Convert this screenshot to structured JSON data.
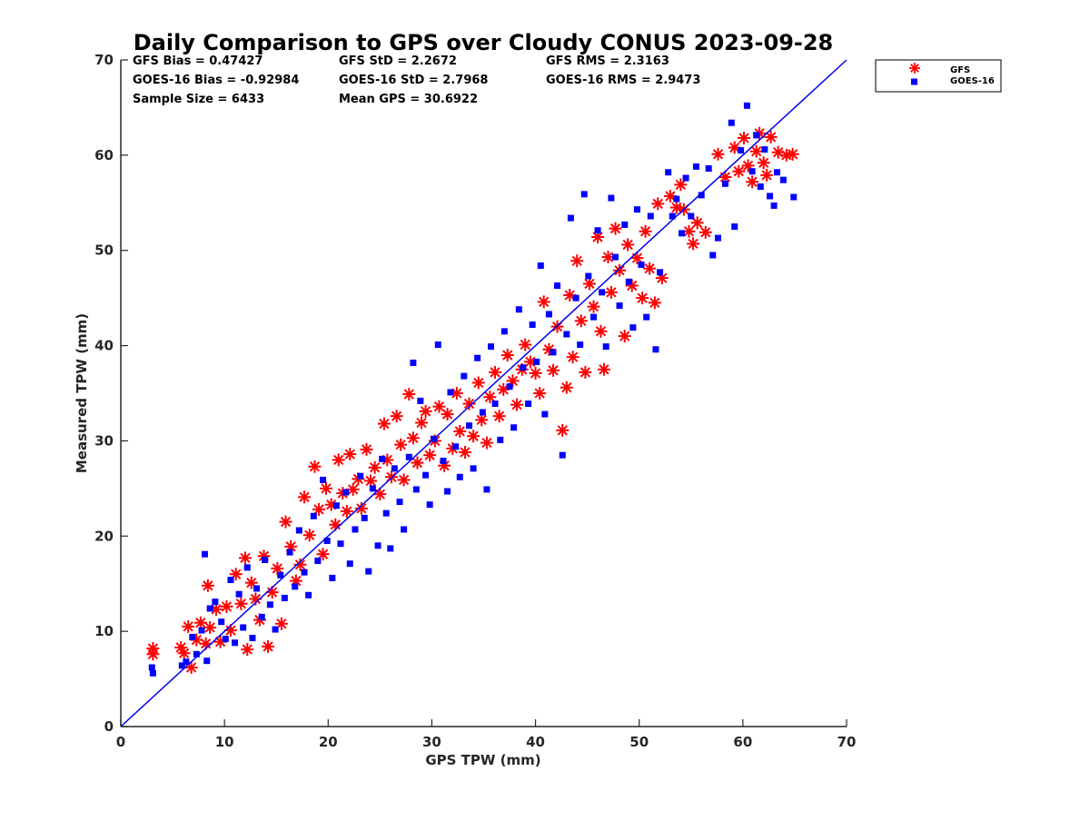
{
  "chart_data": {
    "type": "scatter",
    "title": "Daily Comparison to GPS over Cloudy CONUS 2023-09-28",
    "xlabel": "GPS TPW (mm)",
    "ylabel": "Measured TPW (mm)",
    "xlim": [
      0,
      70
    ],
    "ylim": [
      0,
      70
    ],
    "xticks": [
      0,
      10,
      20,
      30,
      40,
      50,
      60,
      70
    ],
    "yticks": [
      0,
      10,
      20,
      30,
      40,
      50,
      60,
      70
    ],
    "grid": false,
    "legend_position": "outside top-right",
    "reference_line": {
      "x": [
        0,
        70
      ],
      "y": [
        0,
        70
      ],
      "color": "#0000ee"
    },
    "stats": [
      [
        "GFS Bias = 0.47427",
        "GFS StD = 2.2672",
        "GFS RMS = 2.3163"
      ],
      [
        "GOES-16 Bias = -0.92984",
        "GOES-16 StD = 2.7968",
        "GOES-16 RMS = 2.9473"
      ],
      [
        "Sample Size = 6433",
        "Mean GPS = 30.6922",
        ""
      ]
    ],
    "series": [
      {
        "name": "GFS",
        "marker": "asterisk",
        "color": "#ff0000",
        "points": [
          [
            3.1,
            8.2
          ],
          [
            3.1,
            7.6
          ],
          [
            5.8,
            8.3
          ],
          [
            6.1,
            7.7
          ],
          [
            6.5,
            10.5
          ],
          [
            6.8,
            6.2
          ],
          [
            7.3,
            9.1
          ],
          [
            7.7,
            10.9
          ],
          [
            8.2,
            8.7
          ],
          [
            8.4,
            14.8
          ],
          [
            8.6,
            10.4
          ],
          [
            9.2,
            12.3
          ],
          [
            9.6,
            8.9
          ],
          [
            10.2,
            12.6
          ],
          [
            10.6,
            10.1
          ],
          [
            11.1,
            16.0
          ],
          [
            11.6,
            12.9
          ],
          [
            12.0,
            17.7
          ],
          [
            12.2,
            8.1
          ],
          [
            12.6,
            15.1
          ],
          [
            13.0,
            13.4
          ],
          [
            13.4,
            11.2
          ],
          [
            13.8,
            17.9
          ],
          [
            14.2,
            8.4
          ],
          [
            14.6,
            14.1
          ],
          [
            15.1,
            16.6
          ],
          [
            15.5,
            10.8
          ],
          [
            15.9,
            21.5
          ],
          [
            16.4,
            18.9
          ],
          [
            16.9,
            15.3
          ],
          [
            17.3,
            17.0
          ],
          [
            17.7,
            24.1
          ],
          [
            18.2,
            20.1
          ],
          [
            18.7,
            27.3
          ],
          [
            19.1,
            22.8
          ],
          [
            19.5,
            18.1
          ],
          [
            19.8,
            25.0
          ],
          [
            20.3,
            23.3
          ],
          [
            20.7,
            21.2
          ],
          [
            21.0,
            28.0
          ],
          [
            21.4,
            24.5
          ],
          [
            21.8,
            22.6
          ],
          [
            22.1,
            28.6
          ],
          [
            22.4,
            24.9
          ],
          [
            22.9,
            26.0
          ],
          [
            23.2,
            22.9
          ],
          [
            23.7,
            29.1
          ],
          [
            24.1,
            25.8
          ],
          [
            24.5,
            27.2
          ],
          [
            25.0,
            24.4
          ],
          [
            25.4,
            31.8
          ],
          [
            25.7,
            28.0
          ],
          [
            26.1,
            26.2
          ],
          [
            26.6,
            32.6
          ],
          [
            27.0,
            29.6
          ],
          [
            27.3,
            25.9
          ],
          [
            27.8,
            34.9
          ],
          [
            28.2,
            30.3
          ],
          [
            28.6,
            27.7
          ],
          [
            29.0,
            31.9
          ],
          [
            29.4,
            33.1
          ],
          [
            29.8,
            28.5
          ],
          [
            30.3,
            30.0
          ],
          [
            30.7,
            33.6
          ],
          [
            31.2,
            27.4
          ],
          [
            31.5,
            32.8
          ],
          [
            32.0,
            29.2
          ],
          [
            32.4,
            35.0
          ],
          [
            32.7,
            31.0
          ],
          [
            33.2,
            28.8
          ],
          [
            33.6,
            33.9
          ],
          [
            34.0,
            30.5
          ],
          [
            34.5,
            36.1
          ],
          [
            34.8,
            32.2
          ],
          [
            35.3,
            29.8
          ],
          [
            35.6,
            34.6
          ],
          [
            36.1,
            37.2
          ],
          [
            36.5,
            32.6
          ],
          [
            36.9,
            35.4
          ],
          [
            37.3,
            39.0
          ],
          [
            37.8,
            36.3
          ],
          [
            38.2,
            33.8
          ],
          [
            38.7,
            37.5
          ],
          [
            39.0,
            40.1
          ],
          [
            39.5,
            38.3
          ],
          [
            40.0,
            37.1
          ],
          [
            40.4,
            35.0
          ],
          [
            40.8,
            44.6
          ],
          [
            41.3,
            39.6
          ],
          [
            41.7,
            37.4
          ],
          [
            42.1,
            42.0
          ],
          [
            42.6,
            31.1
          ],
          [
            43.0,
            35.6
          ],
          [
            43.3,
            45.3
          ],
          [
            43.6,
            38.8
          ],
          [
            44.0,
            48.9
          ],
          [
            44.4,
            42.6
          ],
          [
            44.8,
            37.2
          ],
          [
            45.2,
            46.5
          ],
          [
            45.6,
            44.1
          ],
          [
            46.0,
            51.4
          ],
          [
            46.3,
            41.5
          ],
          [
            46.6,
            37.5
          ],
          [
            47.0,
            49.3
          ],
          [
            47.3,
            45.6
          ],
          [
            47.7,
            52.3
          ],
          [
            48.1,
            47.9
          ],
          [
            48.6,
            41.0
          ],
          [
            48.9,
            50.6
          ],
          [
            49.3,
            46.3
          ],
          [
            49.8,
            49.2
          ],
          [
            50.3,
            45.0
          ],
          [
            50.6,
            52.0
          ],
          [
            51.0,
            48.1
          ],
          [
            51.5,
            44.5
          ],
          [
            51.8,
            54.9
          ],
          [
            52.2,
            47.1
          ],
          [
            53.0,
            55.7
          ],
          [
            53.6,
            54.5
          ],
          [
            54.0,
            56.9
          ],
          [
            54.3,
            54.3
          ],
          [
            54.8,
            52.0
          ],
          [
            55.2,
            50.7
          ],
          [
            55.6,
            52.9
          ],
          [
            56.4,
            51.9
          ],
          [
            57.6,
            60.1
          ],
          [
            58.3,
            57.7
          ],
          [
            59.2,
            60.8
          ],
          [
            59.6,
            58.3
          ],
          [
            60.1,
            61.8
          ],
          [
            60.5,
            58.9
          ],
          [
            60.9,
            57.2
          ],
          [
            61.3,
            60.4
          ],
          [
            61.6,
            62.3
          ],
          [
            62.0,
            59.2
          ],
          [
            62.3,
            57.9
          ],
          [
            62.7,
            61.9
          ],
          [
            63.4,
            60.3
          ],
          [
            64.2,
            60.0
          ],
          [
            64.8,
            60.1
          ]
        ]
      },
      {
        "name": "GOES-16",
        "marker": "square",
        "color": "#0000ff",
        "points": [
          [
            3.0,
            6.2
          ],
          [
            3.1,
            5.6
          ],
          [
            5.9,
            6.4
          ],
          [
            6.3,
            6.8
          ],
          [
            6.9,
            9.4
          ],
          [
            7.3,
            7.6
          ],
          [
            7.8,
            10.1
          ],
          [
            8.1,
            18.1
          ],
          [
            8.3,
            6.9
          ],
          [
            8.6,
            12.4
          ],
          [
            9.1,
            13.1
          ],
          [
            9.7,
            11.0
          ],
          [
            10.1,
            9.2
          ],
          [
            10.6,
            15.4
          ],
          [
            11.0,
            8.8
          ],
          [
            11.4,
            13.9
          ],
          [
            11.8,
            10.4
          ],
          [
            12.2,
            16.7
          ],
          [
            12.7,
            9.3
          ],
          [
            13.1,
            14.5
          ],
          [
            13.6,
            11.5
          ],
          [
            13.9,
            17.5
          ],
          [
            14.4,
            12.8
          ],
          [
            14.9,
            10.2
          ],
          [
            15.4,
            15.9
          ],
          [
            15.8,
            13.5
          ],
          [
            16.3,
            18.3
          ],
          [
            16.8,
            14.7
          ],
          [
            17.2,
            20.6
          ],
          [
            17.7,
            16.2
          ],
          [
            18.1,
            13.8
          ],
          [
            18.6,
            22.1
          ],
          [
            19.0,
            17.4
          ],
          [
            19.5,
            25.9
          ],
          [
            19.9,
            19.5
          ],
          [
            20.4,
            15.6
          ],
          [
            20.8,
            23.2
          ],
          [
            21.2,
            19.2
          ],
          [
            21.7,
            24.6
          ],
          [
            22.1,
            17.1
          ],
          [
            22.6,
            20.7
          ],
          [
            23.1,
            26.3
          ],
          [
            23.5,
            21.9
          ],
          [
            23.9,
            16.3
          ],
          [
            24.3,
            25.0
          ],
          [
            24.8,
            19.0
          ],
          [
            25.2,
            28.1
          ],
          [
            25.6,
            22.4
          ],
          [
            26.0,
            18.7
          ],
          [
            26.4,
            27.1
          ],
          [
            26.9,
            23.6
          ],
          [
            27.3,
            20.7
          ],
          [
            27.8,
            28.3
          ],
          [
            28.2,
            38.2
          ],
          [
            28.5,
            24.9
          ],
          [
            28.9,
            34.2
          ],
          [
            29.4,
            26.4
          ],
          [
            29.8,
            23.3
          ],
          [
            30.2,
            30.2
          ],
          [
            30.6,
            40.1
          ],
          [
            31.1,
            27.9
          ],
          [
            31.5,
            24.7
          ],
          [
            31.8,
            35.1
          ],
          [
            32.3,
            29.4
          ],
          [
            32.7,
            26.2
          ],
          [
            33.1,
            36.8
          ],
          [
            33.6,
            31.6
          ],
          [
            34.0,
            27.1
          ],
          [
            34.4,
            38.7
          ],
          [
            34.9,
            33.0
          ],
          [
            35.3,
            24.9
          ],
          [
            35.7,
            39.9
          ],
          [
            36.1,
            33.9
          ],
          [
            36.6,
            30.1
          ],
          [
            37.0,
            41.5
          ],
          [
            37.5,
            35.7
          ],
          [
            37.9,
            31.4
          ],
          [
            38.4,
            43.8
          ],
          [
            38.8,
            37.7
          ],
          [
            39.3,
            33.9
          ],
          [
            39.7,
            42.2
          ],
          [
            40.1,
            38.3
          ],
          [
            40.5,
            48.4
          ],
          [
            40.9,
            32.8
          ],
          [
            41.3,
            43.3
          ],
          [
            41.7,
            39.3
          ],
          [
            42.1,
            46.3
          ],
          [
            42.6,
            28.5
          ],
          [
            43.0,
            41.2
          ],
          [
            43.4,
            53.4
          ],
          [
            43.9,
            45.0
          ],
          [
            44.3,
            40.1
          ],
          [
            44.7,
            55.9
          ],
          [
            45.1,
            47.3
          ],
          [
            45.6,
            43.0
          ],
          [
            46.0,
            52.1
          ],
          [
            46.4,
            45.6
          ],
          [
            46.8,
            39.9
          ],
          [
            47.3,
            55.5
          ],
          [
            47.7,
            49.3
          ],
          [
            48.1,
            44.2
          ],
          [
            48.6,
            52.7
          ],
          [
            49.0,
            46.7
          ],
          [
            49.4,
            41.9
          ],
          [
            49.8,
            54.3
          ],
          [
            50.2,
            48.5
          ],
          [
            50.7,
            43.0
          ],
          [
            51.1,
            53.6
          ],
          [
            51.6,
            39.6
          ],
          [
            52.0,
            47.7
          ],
          [
            52.8,
            58.2
          ],
          [
            53.2,
            53.6
          ],
          [
            53.6,
            55.4
          ],
          [
            54.1,
            51.8
          ],
          [
            54.5,
            57.6
          ],
          [
            55.0,
            53.6
          ],
          [
            55.5,
            58.8
          ],
          [
            56.0,
            55.8
          ],
          [
            56.7,
            58.6
          ],
          [
            57.1,
            49.5
          ],
          [
            57.6,
            51.3
          ],
          [
            58.3,
            57.0
          ],
          [
            58.9,
            63.4
          ],
          [
            59.2,
            52.5
          ],
          [
            59.8,
            60.5
          ],
          [
            60.4,
            65.2
          ],
          [
            60.9,
            58.3
          ],
          [
            61.3,
            62.1
          ],
          [
            61.7,
            56.7
          ],
          [
            62.1,
            60.6
          ],
          [
            62.6,
            55.7
          ],
          [
            63.0,
            54.7
          ],
          [
            63.3,
            58.2
          ],
          [
            63.9,
            57.4
          ],
          [
            64.9,
            55.6
          ]
        ]
      }
    ]
  }
}
